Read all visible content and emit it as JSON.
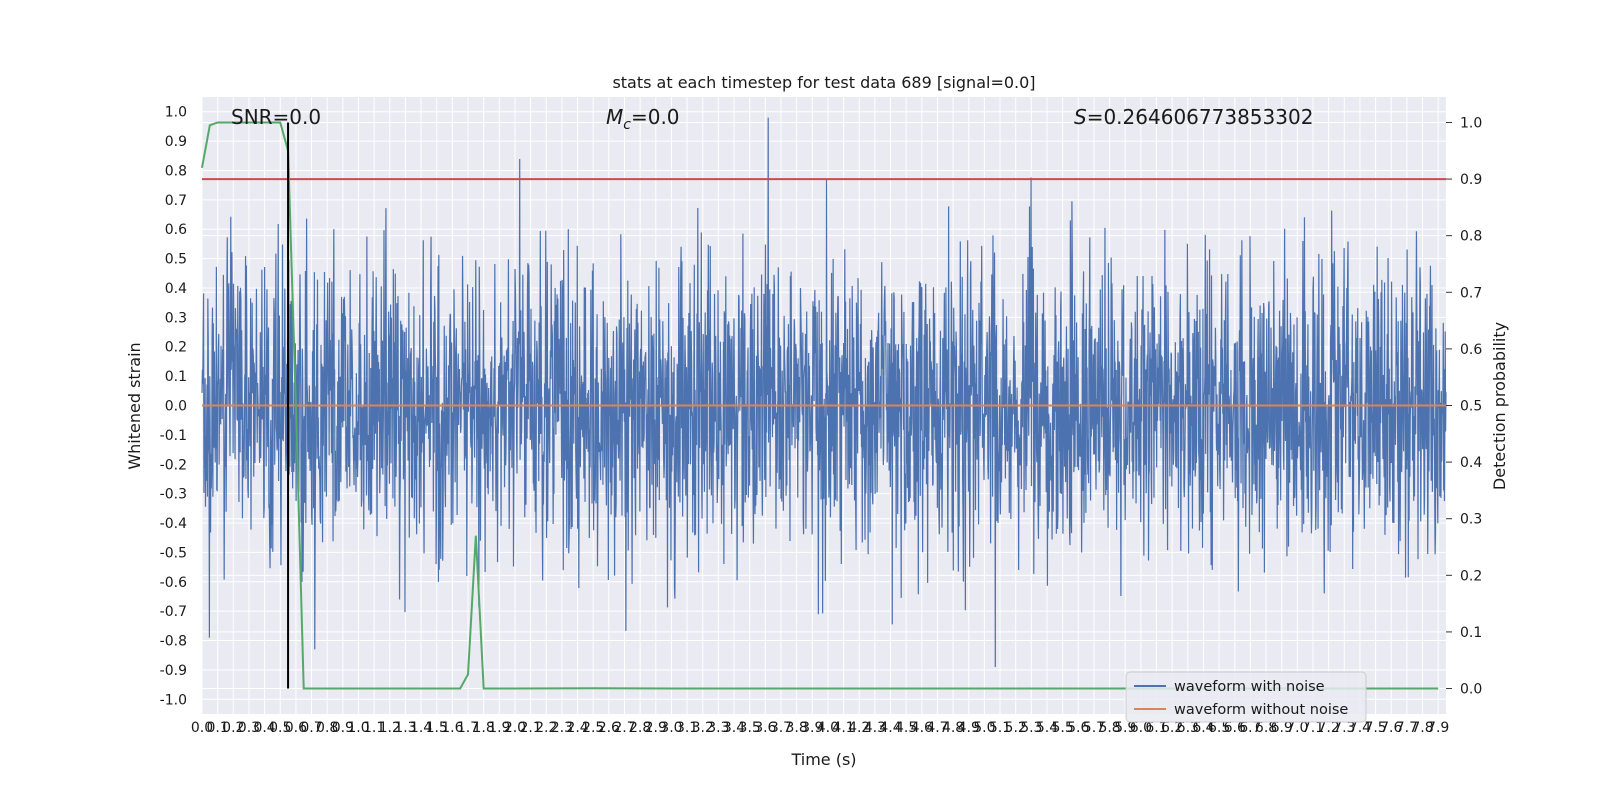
{
  "chart_data": {
    "type": "line",
    "title": "stats at each timestep for test data 689 [signal=0.0]",
    "xlabel": "Time (s)",
    "ylabel_left": "Whitened strain",
    "ylabel_right": "Detection probability",
    "xlim": [
      0.0,
      7.95
    ],
    "ylim_left": [
      -1.05,
      1.05
    ],
    "ylim_right": [
      -0.045,
      1.045
    ],
    "x_tick_step": 0.1,
    "x_tick_max": 7.9,
    "y_left_ticks": [
      -1.0,
      -0.9,
      -0.8,
      -0.7,
      -0.6,
      -0.5,
      -0.4,
      -0.3,
      -0.2,
      -0.1,
      0.0,
      0.1,
      0.2,
      0.3,
      0.4,
      0.5,
      0.6,
      0.7,
      0.8,
      0.9,
      1.0
    ],
    "y_right_ticks": [
      0.0,
      0.1,
      0.2,
      0.3,
      0.4,
      0.5,
      0.6,
      0.7,
      0.8,
      0.9,
      1.0
    ],
    "grid": true,
    "legend_position": "lower-right",
    "annotations": {
      "snr": "SNR=0.0",
      "mc_symbol": "M",
      "mc_sub": "c",
      "mc_value": "=0.0",
      "s_symbol": "S",
      "s_value": "=0.264606773853302"
    },
    "event_marker_x": 0.55,
    "threshold_probability": 0.9,
    "series": [
      {
        "name": "waveform with noise",
        "axis": "left",
        "color": "#4c72b0",
        "description_of_values": "dense noise samples between about -0.92 and 0.98",
        "envelope_lower": -0.92,
        "envelope_upper": 0.98
      },
      {
        "name": "waveform without noise",
        "axis": "left",
        "color": "#dd8452",
        "x": [
          0.0,
          7.95
        ],
        "y": [
          0.0,
          0.0
        ]
      },
      {
        "axis": "right",
        "color": "#55a868",
        "x": [
          0.0,
          0.05,
          0.1,
          0.15,
          0.2,
          0.3,
          0.4,
          0.45,
          0.5,
          0.55,
          0.6,
          0.65,
          0.7,
          0.8,
          1.0,
          1.2,
          1.4,
          1.6,
          1.65,
          1.7,
          1.75,
          1.8,
          1.85,
          1.9,
          2.0,
          2.5,
          3.0,
          4.0,
          5.0,
          6.0,
          7.0,
          7.9
        ],
        "y": [
          0.92,
          0.995,
          1.0,
          1.0,
          1.0,
          1.0,
          1.0,
          1.0,
          1.0,
          0.95,
          0.5,
          0.0,
          0.0,
          0.0,
          0.0,
          0.0,
          0.0,
          0.0,
          0.0,
          0.025,
          0.27,
          0.0,
          0.0,
          0.0,
          0.0,
          0.0005,
          0.0,
          0.0,
          0.0,
          0.0,
          0.0,
          0.0
        ]
      },
      {
        "axis": "right",
        "color": "#c44e52",
        "x": [
          0.0,
          7.95
        ],
        "y": [
          0.9,
          0.9
        ]
      }
    ]
  }
}
